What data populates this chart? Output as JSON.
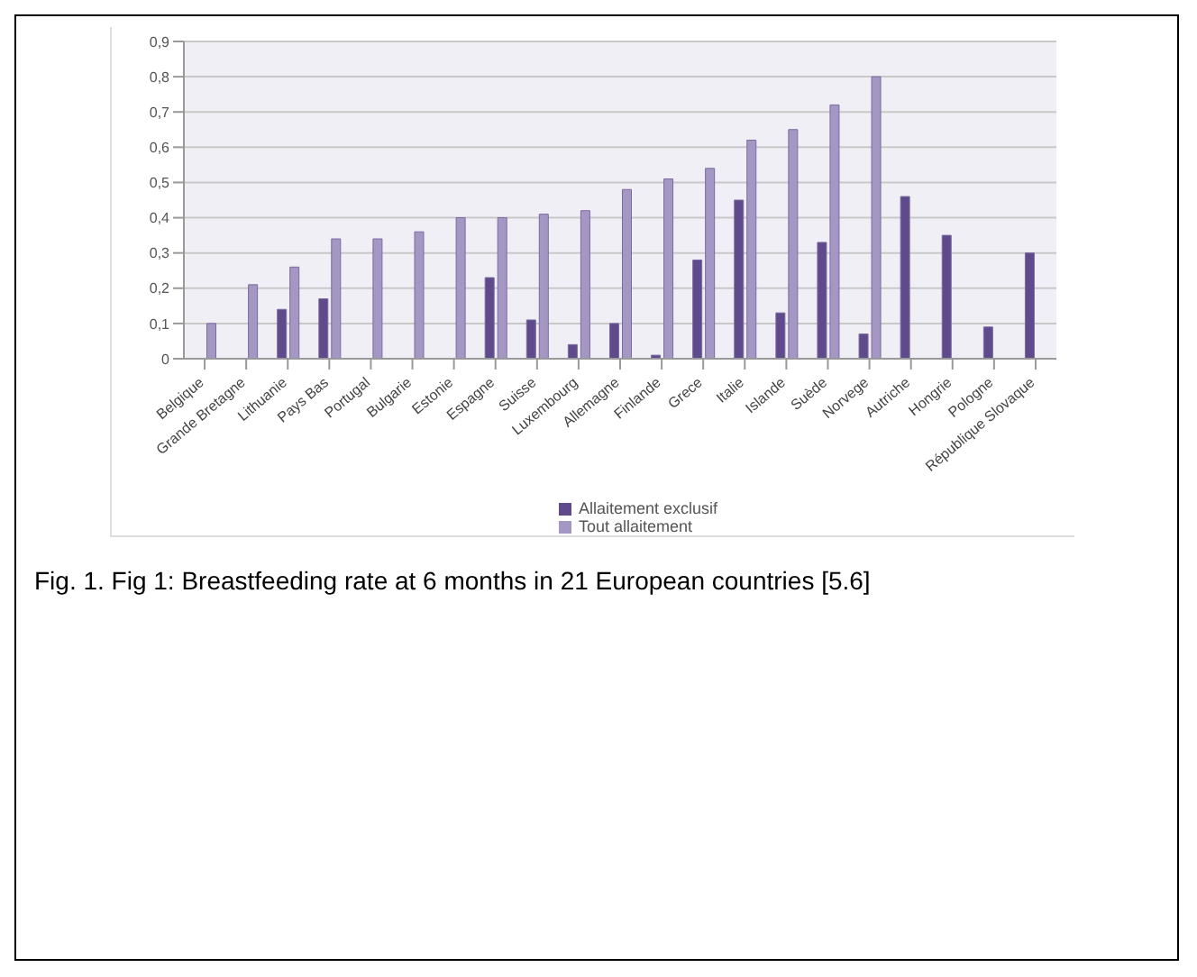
{
  "chart_data": {
    "type": "bar",
    "categories": [
      "Belgique",
      "Grande Bretagne",
      "Lithuanie",
      "Pays Bas",
      "Portugal",
      "Bulgarie",
      "Estonie",
      "Espagne",
      "Suisse",
      "Luxembourg",
      "Allemagne",
      "Finlande",
      "Grece",
      "Italie",
      "Islande",
      "Suède",
      "Norvege",
      "Autriche",
      "Hongrie",
      "Pologne",
      "République Slovaque"
    ],
    "series": [
      {
        "name": "Allaitement exclusif",
        "color": "#5f4a8b",
        "values": [
          null,
          null,
          0.14,
          0.17,
          null,
          null,
          null,
          0.23,
          0.11,
          0.04,
          0.1,
          0.01,
          0.28,
          0.45,
          0.13,
          0.33,
          0.07,
          0.46,
          0.35,
          0.09,
          0.3
        ]
      },
      {
        "name": "Tout allaitement",
        "color": "#a597c3",
        "values": [
          0.1,
          0.21,
          0.26,
          0.34,
          0.34,
          0.36,
          0.4,
          0.4,
          0.41,
          0.42,
          0.48,
          0.51,
          0.54,
          0.62,
          0.65,
          0.72,
          0.8,
          null,
          null,
          null,
          null
        ]
      }
    ],
    "ylim": [
      0,
      0.9
    ],
    "yticks": [
      0,
      {
        "value": 0.1,
        "label": "0,1"
      },
      {
        "value": 0.2,
        "label": "0,2"
      },
      {
        "value": 0.3,
        "label": "0,3"
      },
      {
        "value": 0.4,
        "label": "0,4"
      },
      {
        "value": 0.5,
        "label": "0,5"
      },
      {
        "value": 0.6,
        "label": "0,6"
      },
      {
        "value": 0.7,
        "label": "0,7"
      },
      {
        "value": 0.8,
        "label": "0,8"
      },
      {
        "value": 0.9,
        "label": "0,9"
      }
    ],
    "grid": "y",
    "legend": "bottom",
    "annotations": [
      "Fig. 1. Fig 1: Breastfeeding rate at 6 months in 21 European countries [5.6]"
    ]
  }
}
